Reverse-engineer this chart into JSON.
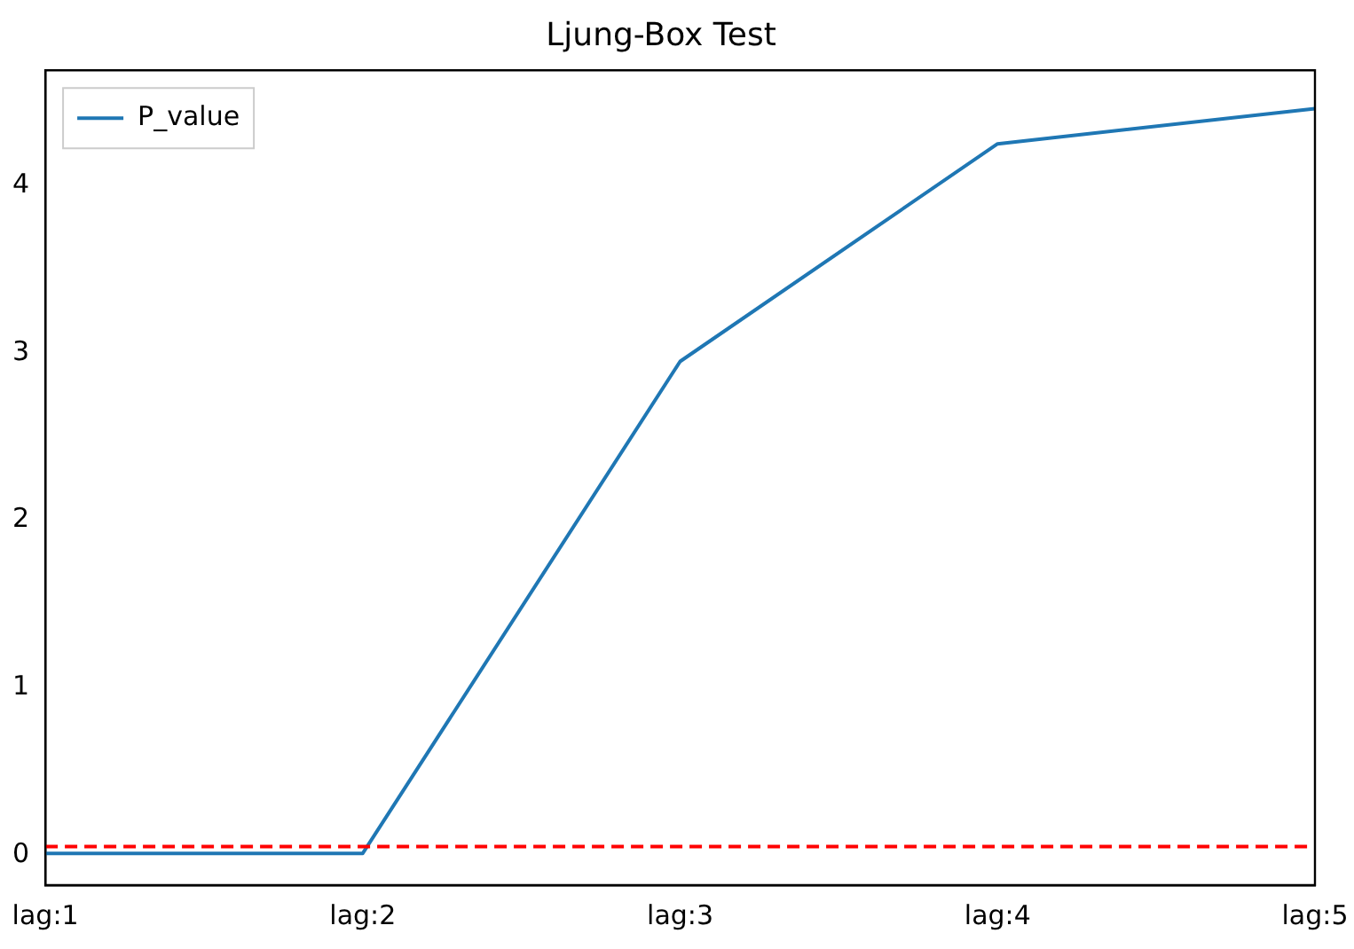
{
  "chart_data": {
    "type": "line",
    "title": "Ljung-Box Test",
    "categories": [
      "lag:1",
      "lag:2",
      "lag:3",
      "lag:4",
      "lag:5"
    ],
    "series": [
      {
        "name": "P_value",
        "color": "#1f77b4",
        "values": [
          0.01,
          0.01,
          2.95,
          4.25,
          4.46
        ]
      }
    ],
    "ylim": [
      -0.18,
      4.69
    ],
    "yticks": [
      0,
      1,
      2,
      3,
      4
    ],
    "ref_lines": [
      {
        "axis": "y",
        "value": 0.05,
        "color": "#ff0000",
        "line_style": "dashed"
      }
    ],
    "grid": false,
    "legend": "top left",
    "marker": "none",
    "line_style": "solid"
  }
}
